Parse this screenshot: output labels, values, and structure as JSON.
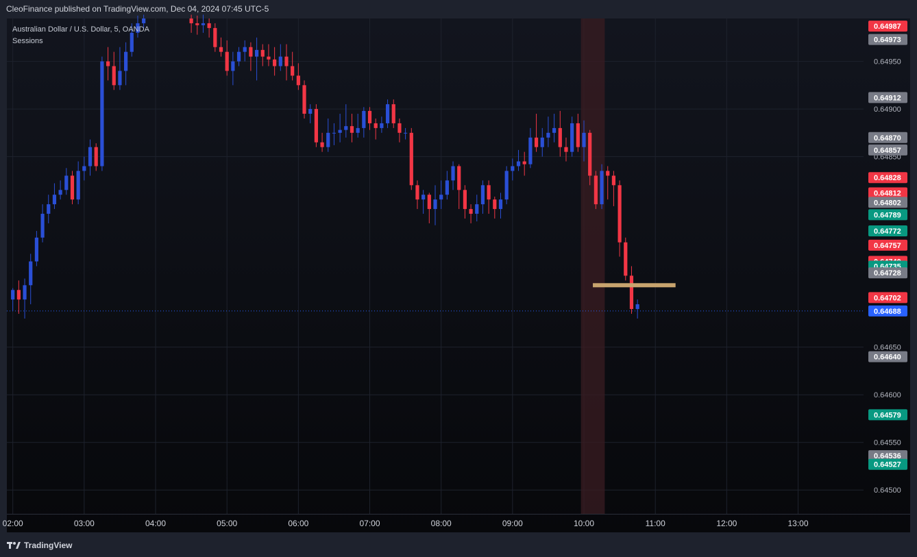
{
  "header": {
    "publisher_line": "CleoFinance published on TradingView.com, Dec 04, 2024 07:45 UTC-5"
  },
  "legend": {
    "symbol_line": "Australian Dollar / U.S. Dollar, 5, OANDA",
    "indicator": "Sessions"
  },
  "footer": {
    "brand": "TradingView",
    "logo_icon": "tradingview-logo-icon"
  },
  "colors": {
    "up": "#2a4fd6",
    "down": "#f23645",
    "grid": "#1e222d",
    "session": "#3a1c22",
    "marker": "#c8a46e",
    "current": "#2962ff"
  },
  "chart_data": {
    "type": "candlestick",
    "title": "Australian Dollar / U.S. Dollar, 5, OANDA",
    "x_ticks": [
      "02:00",
      "03:00",
      "04:00",
      "05:00",
      "06:00",
      "07:00",
      "08:00",
      "09:00",
      "10:00",
      "11:00",
      "12:00",
      "13:00"
    ],
    "y_ticks": [
      "0.64950",
      "0.64900",
      "0.64850",
      "0.64650",
      "0.64600",
      "0.64550",
      "0.64500"
    ],
    "y_tick_values": [
      0.6495,
      0.649,
      0.6485,
      0.6465,
      0.646,
      0.6455,
      0.645
    ],
    "ylim": [
      0.64475,
      0.64995
    ],
    "x_range_minutes": [
      -5,
      715
    ],
    "price_labels": [
      {
        "text": "0.64987",
        "value": 0.64987,
        "color": "#f23645"
      },
      {
        "text": "0.64973",
        "value": 0.64973,
        "color": "#787b86"
      },
      {
        "text": "0.64912",
        "value": 0.64912,
        "color": "#787b86"
      },
      {
        "text": "0.64870",
        "value": 0.6487,
        "color": "#787b86"
      },
      {
        "text": "0.64857",
        "value": 0.64857,
        "color": "#787b86"
      },
      {
        "text": "0.64828",
        "value": 0.64828,
        "color": "#f23645"
      },
      {
        "text": "0.64812",
        "value": 0.64812,
        "color": "#f23645"
      },
      {
        "text": "0.64802",
        "value": 0.64802,
        "color": "#787b86"
      },
      {
        "text": "0.64789",
        "value": 0.64789,
        "color": "#089981"
      },
      {
        "text": "0.64772",
        "value": 0.64772,
        "color": "#089981"
      },
      {
        "text": "0.64757",
        "value": 0.64757,
        "color": "#f23645"
      },
      {
        "text": "0.64740",
        "value": 0.6474,
        "color": "#f23645"
      },
      {
        "text": "0.64735",
        "value": 0.64735,
        "color": "#089981"
      },
      {
        "text": "0.64728",
        "value": 0.64728,
        "color": "#787b86"
      },
      {
        "text": "0.64702",
        "value": 0.64702,
        "color": "#f23645"
      },
      {
        "text": "0.64688",
        "value": 0.64688,
        "color": "#2962ff"
      },
      {
        "text": "0.64640",
        "value": 0.6464,
        "color": "#787b86"
      },
      {
        "text": "0.64579",
        "value": 0.64579,
        "color": "#089981"
      },
      {
        "text": "0.64536",
        "value": 0.64536,
        "color": "#787b86"
      },
      {
        "text": "0.64527",
        "value": 0.64527,
        "color": "#089981"
      }
    ],
    "current_price": 0.64688,
    "session_band_minutes": [
      477.5,
      497.5
    ],
    "level_line": {
      "value": 0.64715,
      "from_minutes": 487.5,
      "to_minutes": 557
    },
    "candles": [
      [
        0,
        0.647,
        0.6471,
        0.64712,
        0.64688
      ],
      [
        5,
        0.6471,
        0.647,
        0.6472,
        0.64685
      ],
      [
        10,
        0.647,
        0.64715,
        0.64722,
        0.6468
      ],
      [
        15,
        0.64715,
        0.6474,
        0.64748,
        0.64695
      ],
      [
        20,
        0.6474,
        0.64765,
        0.64772,
        0.64735
      ],
      [
        25,
        0.64765,
        0.6479,
        0.648,
        0.6476
      ],
      [
        30,
        0.6479,
        0.648,
        0.6481,
        0.6478
      ],
      [
        35,
        0.648,
        0.6481,
        0.64822,
        0.64795
      ],
      [
        40,
        0.6481,
        0.64815,
        0.64825,
        0.64805
      ],
      [
        45,
        0.64815,
        0.6483,
        0.64838,
        0.6481
      ],
      [
        50,
        0.6483,
        0.64805,
        0.64835,
        0.648
      ],
      [
        55,
        0.64805,
        0.64835,
        0.64845,
        0.648
      ],
      [
        60,
        0.64835,
        0.6484,
        0.6485,
        0.64825
      ],
      [
        65,
        0.6484,
        0.6486,
        0.64868,
        0.6483
      ],
      [
        70,
        0.6486,
        0.6484,
        0.64864,
        0.64835
      ],
      [
        75,
        0.6484,
        0.6495,
        0.64955,
        0.64835
      ],
      [
        80,
        0.6495,
        0.64945,
        0.64965,
        0.6493
      ],
      [
        85,
        0.64945,
        0.64925,
        0.6496,
        0.6492
      ],
      [
        90,
        0.64925,
        0.6494,
        0.64965,
        0.6492
      ],
      [
        95,
        0.6494,
        0.6496,
        0.6497,
        0.64925
      ],
      [
        100,
        0.6496,
        0.6498,
        0.6499,
        0.64955
      ],
      [
        105,
        0.6498,
        0.6499,
        0.64998,
        0.64975
      ],
      [
        110,
        0.6499,
        0.64995,
        0.64999,
        0.64985
      ],
      [
        150,
        0.64995,
        0.6499,
        0.64999,
        0.6498
      ],
      [
        155,
        0.6499,
        0.64988,
        0.64998,
        0.64978
      ],
      [
        160,
        0.64988,
        0.6499,
        0.64999,
        0.6498
      ],
      [
        165,
        0.6499,
        0.64985,
        0.64995,
        0.64975
      ],
      [
        170,
        0.64985,
        0.64965,
        0.6499,
        0.6496
      ],
      [
        175,
        0.64965,
        0.6496,
        0.64975,
        0.64955
      ],
      [
        180,
        0.6496,
        0.6494,
        0.64972,
        0.64935
      ],
      [
        185,
        0.6494,
        0.6495,
        0.6496,
        0.64925
      ],
      [
        190,
        0.6495,
        0.6496,
        0.64965,
        0.64945
      ],
      [
        195,
        0.6496,
        0.64965,
        0.64972,
        0.6495
      ],
      [
        200,
        0.64965,
        0.64955,
        0.6497,
        0.6494
      ],
      [
        205,
        0.64955,
        0.64962,
        0.64975,
        0.6493
      ],
      [
        210,
        0.64962,
        0.64955,
        0.64968,
        0.64945
      ],
      [
        215,
        0.64955,
        0.64952,
        0.64968,
        0.64945
      ],
      [
        220,
        0.64952,
        0.64945,
        0.64965,
        0.64935
      ],
      [
        225,
        0.64945,
        0.64955,
        0.64968,
        0.6494
      ],
      [
        230,
        0.64955,
        0.64945,
        0.64968,
        0.6493
      ],
      [
        235,
        0.64945,
        0.64935,
        0.6496,
        0.6493
      ],
      [
        240,
        0.64935,
        0.64925,
        0.64948,
        0.6492
      ],
      [
        245,
        0.64925,
        0.64895,
        0.6493,
        0.6489
      ],
      [
        250,
        0.64895,
        0.649,
        0.64905,
        0.64885
      ],
      [
        255,
        0.649,
        0.64865,
        0.64905,
        0.6486
      ],
      [
        260,
        0.64865,
        0.6486,
        0.64875,
        0.64855
      ],
      [
        265,
        0.6486,
        0.64875,
        0.6489,
        0.64855
      ],
      [
        270,
        0.64875,
        0.64875,
        0.64885,
        0.64862
      ],
      [
        275,
        0.64875,
        0.64878,
        0.64895,
        0.64865
      ],
      [
        280,
        0.64878,
        0.64882,
        0.64905,
        0.6487
      ],
      [
        285,
        0.64882,
        0.64875,
        0.64895,
        0.64865
      ],
      [
        290,
        0.64875,
        0.6488,
        0.64895,
        0.6487
      ],
      [
        295,
        0.6488,
        0.64898,
        0.64902,
        0.6487
      ],
      [
        300,
        0.64898,
        0.64885,
        0.64902,
        0.64878
      ],
      [
        305,
        0.64885,
        0.6488,
        0.6489,
        0.64868
      ],
      [
        310,
        0.6488,
        0.64885,
        0.64892,
        0.64875
      ],
      [
        315,
        0.64885,
        0.64905,
        0.6491,
        0.6488
      ],
      [
        320,
        0.64905,
        0.64885,
        0.6491,
        0.6488
      ],
      [
        325,
        0.64885,
        0.64875,
        0.6489,
        0.64865
      ],
      [
        330,
        0.64875,
        0.64875,
        0.6488,
        0.64868
      ],
      [
        335,
        0.64875,
        0.6482,
        0.6488,
        0.64815
      ],
      [
        340,
        0.6482,
        0.64805,
        0.64825,
        0.64795
      ],
      [
        345,
        0.64805,
        0.6481,
        0.64815,
        0.6479
      ],
      [
        350,
        0.6481,
        0.64795,
        0.64812,
        0.6478
      ],
      [
        355,
        0.64795,
        0.64805,
        0.6482,
        0.64778
      ],
      [
        360,
        0.64805,
        0.6481,
        0.64825,
        0.64795
      ],
      [
        365,
        0.6481,
        0.64825,
        0.64835,
        0.64805
      ],
      [
        370,
        0.64825,
        0.6484,
        0.64845,
        0.64815
      ],
      [
        375,
        0.6484,
        0.64815,
        0.64842,
        0.64795
      ],
      [
        380,
        0.64815,
        0.64795,
        0.6482,
        0.64785
      ],
      [
        385,
        0.64795,
        0.6479,
        0.648,
        0.6478
      ],
      [
        390,
        0.6479,
        0.648,
        0.6481,
        0.64782
      ],
      [
        395,
        0.648,
        0.6482,
        0.64825,
        0.6479
      ],
      [
        400,
        0.6482,
        0.64805,
        0.64825,
        0.6479
      ],
      [
        405,
        0.64805,
        0.64795,
        0.64808,
        0.64785
      ],
      [
        410,
        0.64795,
        0.64805,
        0.64812,
        0.64785
      ],
      [
        415,
        0.64805,
        0.64835,
        0.6484,
        0.648
      ],
      [
        420,
        0.64835,
        0.6484,
        0.64848,
        0.64825
      ],
      [
        425,
        0.6484,
        0.64845,
        0.64857,
        0.64835
      ],
      [
        430,
        0.64845,
        0.64842,
        0.64855,
        0.6483
      ],
      [
        435,
        0.64842,
        0.6487,
        0.6488,
        0.64838
      ],
      [
        440,
        0.6487,
        0.6486,
        0.64895,
        0.64855
      ],
      [
        445,
        0.6486,
        0.6487,
        0.6488,
        0.6485
      ],
      [
        450,
        0.6487,
        0.64875,
        0.64892,
        0.6486
      ],
      [
        455,
        0.64875,
        0.6488,
        0.64895,
        0.64865
      ],
      [
        460,
        0.6488,
        0.6486,
        0.64898,
        0.6485
      ],
      [
        465,
        0.6486,
        0.64855,
        0.6487,
        0.64845
      ],
      [
        470,
        0.64855,
        0.64885,
        0.64892,
        0.6485
      ],
      [
        475,
        0.64885,
        0.6486,
        0.64895,
        0.64855
      ],
      [
        480,
        0.6486,
        0.64875,
        0.64888,
        0.64845
      ],
      [
        485,
        0.64875,
        0.6483,
        0.64878,
        0.6482
      ],
      [
        490,
        0.6483,
        0.648,
        0.64835,
        0.64795
      ],
      [
        495,
        0.648,
        0.64835,
        0.64842,
        0.64795
      ],
      [
        500,
        0.64835,
        0.6483,
        0.6484,
        0.64805
      ],
      [
        505,
        0.6483,
        0.6482,
        0.64835,
        0.64798
      ],
      [
        510,
        0.6482,
        0.6476,
        0.64825,
        0.64745
      ],
      [
        515,
        0.6476,
        0.64725,
        0.64765,
        0.6472
      ],
      [
        520,
        0.64725,
        0.6469,
        0.64735,
        0.64685
      ],
      [
        525,
        0.6469,
        0.64695,
        0.647,
        0.6468
      ]
    ]
  }
}
